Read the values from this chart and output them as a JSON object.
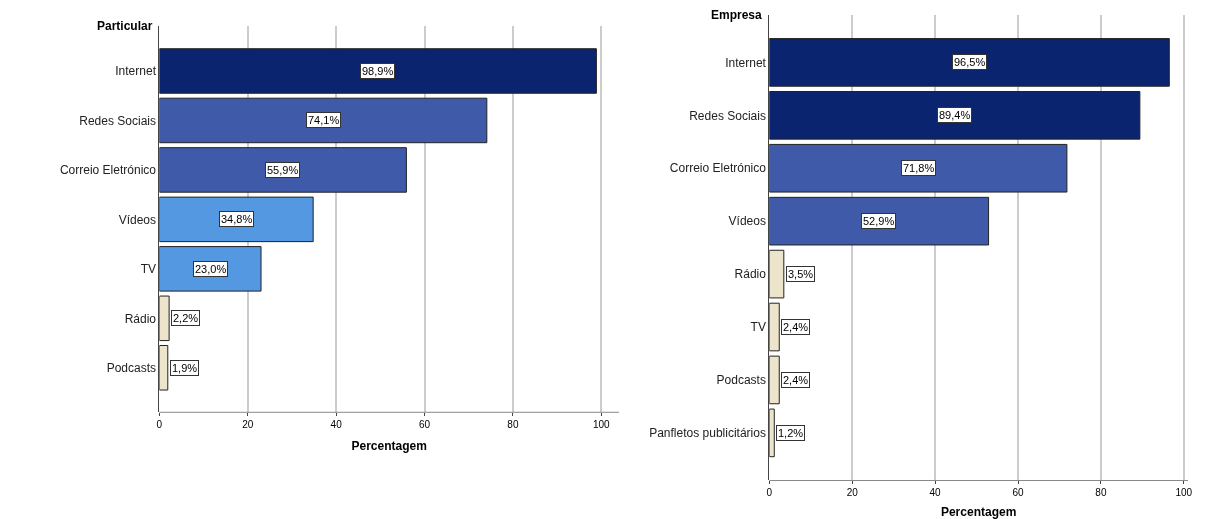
{
  "chart_data": [
    {
      "type": "bar",
      "orientation": "horizontal",
      "title": "Particular",
      "xlabel": "Percentagem",
      "categories": [
        "Internet",
        "Redes Sociais",
        "Correio Eletrónico",
        "Vídeos",
        "TV",
        "Rádio",
        "Podcasts"
      ],
      "values": [
        98.9,
        74.1,
        55.9,
        34.8,
        23.0,
        2.2,
        1.9
      ],
      "value_labels": [
        "98,9%",
        "74,1%",
        "55,9%",
        "34,8%",
        "23,0%",
        "2,2%",
        "1,9%"
      ],
      "colors": [
        "#0b2470",
        "#3f5aa8",
        "#3f5aa8",
        "#5598e2",
        "#5598e2",
        "#ede4cc",
        "#ede4cc"
      ],
      "xlim": [
        0,
        104
      ],
      "xticks": [
        0,
        20,
        40,
        60,
        80,
        100
      ],
      "grid": "x"
    },
    {
      "type": "bar",
      "orientation": "horizontal",
      "title": "Empresa",
      "xlabel": "Percentagem",
      "categories": [
        "Internet",
        "Redes Sociais",
        "Correio Eletrónico",
        "Vídeos",
        "Rádio",
        "TV",
        "Podcasts",
        "Panfletos publicitários"
      ],
      "values": [
        96.5,
        89.4,
        71.8,
        52.9,
        3.5,
        2.4,
        2.4,
        1.2
      ],
      "value_labels": [
        "96,5%",
        "89,4%",
        "71,8%",
        "52,9%",
        "3,5%",
        "2,4%",
        "2,4%",
        "1,2%"
      ],
      "colors": [
        "#0b2470",
        "#0b2470",
        "#3f5aa8",
        "#3f5aa8",
        "#ede4cc",
        "#ede4cc",
        "#ede4cc",
        "#ede4cc"
      ],
      "xlim": [
        0,
        101
      ],
      "xticks": [
        0,
        20,
        40,
        60,
        80,
        100
      ],
      "grid": "x"
    }
  ]
}
